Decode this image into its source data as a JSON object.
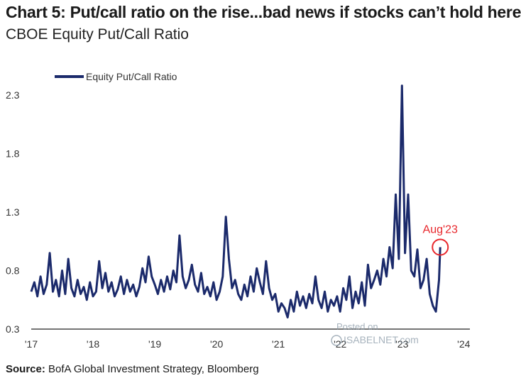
{
  "header": {
    "title": "Chart 5: Put/call ratio on the rise...bad news if stocks can’t hold here",
    "subtitle": "CBOE Equity Put/Call Ratio"
  },
  "footer": {
    "source_label": "Source:",
    "source_text": "BofA Global Investment Strategy, Bloomberg"
  },
  "watermark": {
    "line1": "Posted on",
    "line2": "ISABELNET.com"
  },
  "colors": {
    "series": "#1b2a6b",
    "annotation": "#e8262b",
    "axis": "#222222"
  },
  "chart_data": {
    "type": "line",
    "title": "CBOE Equity Put/Call Ratio",
    "xlabel": "",
    "ylabel": "",
    "ylim": [
      0.3,
      2.4
    ],
    "xlim": [
      2017.0,
      2024.1
    ],
    "yticks": [
      0.3,
      0.8,
      1.3,
      1.8,
      2.3
    ],
    "ytick_labels": [
      "0.3",
      "0.8",
      "1.3",
      "1.8",
      "2.3"
    ],
    "xticks": [
      2017,
      2018,
      2019,
      2020,
      2021,
      2022,
      2023,
      2024
    ],
    "xtick_labels": [
      "'17",
      "'18",
      "'19",
      "'20",
      "'21",
      "'22",
      "'23",
      "'24"
    ],
    "legend": {
      "position": "top-left",
      "entries": [
        "Equity Put/Call Ratio"
      ]
    },
    "annotations": [
      {
        "text": "Aug'23",
        "x": 2023.62,
        "y": 1.0,
        "marker": "circle"
      }
    ],
    "series": [
      {
        "name": "Equity Put/Call Ratio",
        "x": [
          2017.0,
          2017.05,
          2017.1,
          2017.15,
          2017.2,
          2017.25,
          2017.3,
          2017.35,
          2017.4,
          2017.45,
          2017.5,
          2017.55,
          2017.6,
          2017.65,
          2017.7,
          2017.75,
          2017.8,
          2017.85,
          2017.9,
          2017.95,
          2018.0,
          2018.05,
          2018.1,
          2018.15,
          2018.2,
          2018.25,
          2018.3,
          2018.35,
          2018.4,
          2018.45,
          2018.5,
          2018.55,
          2018.6,
          2018.65,
          2018.7,
          2018.75,
          2018.8,
          2018.85,
          2018.9,
          2018.95,
          2019.0,
          2019.05,
          2019.1,
          2019.15,
          2019.2,
          2019.25,
          2019.3,
          2019.35,
          2019.4,
          2019.45,
          2019.5,
          2019.55,
          2019.6,
          2019.65,
          2019.7,
          2019.75,
          2019.8,
          2019.85,
          2019.9,
          2019.95,
          2020.0,
          2020.05,
          2020.1,
          2020.15,
          2020.2,
          2020.25,
          2020.3,
          2020.35,
          2020.4,
          2020.45,
          2020.5,
          2020.55,
          2020.6,
          2020.65,
          2020.7,
          2020.75,
          2020.8,
          2020.85,
          2020.9,
          2020.95,
          2021.0,
          2021.05,
          2021.1,
          2021.15,
          2021.2,
          2021.25,
          2021.3,
          2021.35,
          2021.4,
          2021.45,
          2021.5,
          2021.55,
          2021.6,
          2021.65,
          2021.7,
          2021.75,
          2021.8,
          2021.85,
          2021.9,
          2021.95,
          2022.0,
          2022.05,
          2022.1,
          2022.15,
          2022.2,
          2022.25,
          2022.3,
          2022.35,
          2022.4,
          2022.45,
          2022.5,
          2022.55,
          2022.6,
          2022.65,
          2022.7,
          2022.75,
          2022.8,
          2022.85,
          2022.9,
          2022.95,
          2023.0,
          2023.05,
          2023.1,
          2023.15,
          2023.2,
          2023.25,
          2023.3,
          2023.35,
          2023.4,
          2023.45,
          2023.5,
          2023.55,
          2023.6,
          2023.62
        ],
        "values": [
          0.62,
          0.7,
          0.58,
          0.75,
          0.6,
          0.68,
          0.95,
          0.62,
          0.72,
          0.58,
          0.8,
          0.6,
          0.9,
          0.65,
          0.58,
          0.72,
          0.6,
          0.66,
          0.55,
          0.7,
          0.58,
          0.62,
          0.88,
          0.65,
          0.78,
          0.62,
          0.7,
          0.58,
          0.64,
          0.75,
          0.6,
          0.72,
          0.62,
          0.68,
          0.58,
          0.66,
          0.82,
          0.7,
          0.92,
          0.75,
          0.68,
          0.6,
          0.72,
          0.62,
          0.75,
          0.64,
          0.8,
          0.7,
          1.1,
          0.75,
          0.65,
          0.72,
          0.85,
          0.68,
          0.62,
          0.78,
          0.6,
          0.66,
          0.58,
          0.7,
          0.55,
          0.62,
          0.75,
          1.26,
          0.9,
          0.65,
          0.72,
          0.6,
          0.55,
          0.68,
          0.58,
          0.75,
          0.62,
          0.82,
          0.7,
          0.6,
          0.88,
          0.65,
          0.55,
          0.6,
          0.45,
          0.52,
          0.48,
          0.4,
          0.55,
          0.45,
          0.62,
          0.5,
          0.58,
          0.48,
          0.6,
          0.52,
          0.75,
          0.55,
          0.48,
          0.62,
          0.45,
          0.55,
          0.5,
          0.58,
          0.45,
          0.65,
          0.55,
          0.75,
          0.48,
          0.62,
          0.52,
          0.7,
          0.5,
          0.85,
          0.65,
          0.72,
          0.8,
          0.68,
          0.9,
          0.75,
          1.0,
          0.82,
          1.45,
          0.9,
          2.38,
          0.95,
          1.45,
          0.8,
          0.75,
          0.98,
          0.65,
          0.72,
          0.9,
          0.6,
          0.5,
          0.45,
          0.72,
          1.0
        ]
      }
    ]
  }
}
